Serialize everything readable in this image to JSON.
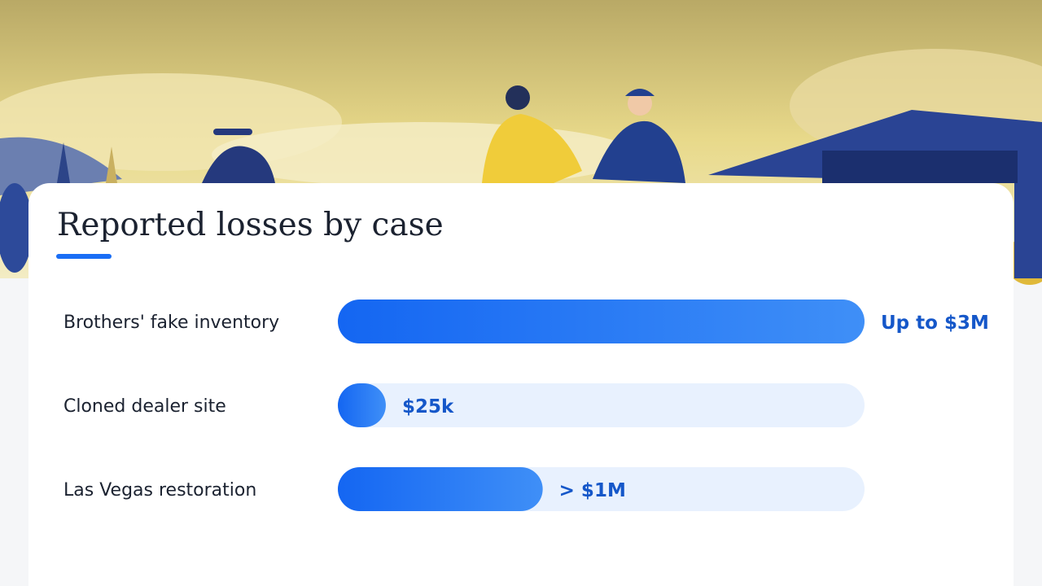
{
  "chart_data": {
    "type": "bar",
    "orientation": "horizontal",
    "title": "Reported losses by case",
    "categories": [
      "Brothers' fake inventory",
      "Cloned dealer site",
      "Las Vegas restoration"
    ],
    "values": [
      3000000,
      25000,
      1000000
    ],
    "value_labels": [
      "Up to $3M",
      "$25k",
      "> $1M"
    ],
    "color": "#1a6ef5",
    "track_color": "#e8f1fe",
    "label_color": "#1557c9",
    "xlim": [
      0,
      3000000
    ]
  }
}
